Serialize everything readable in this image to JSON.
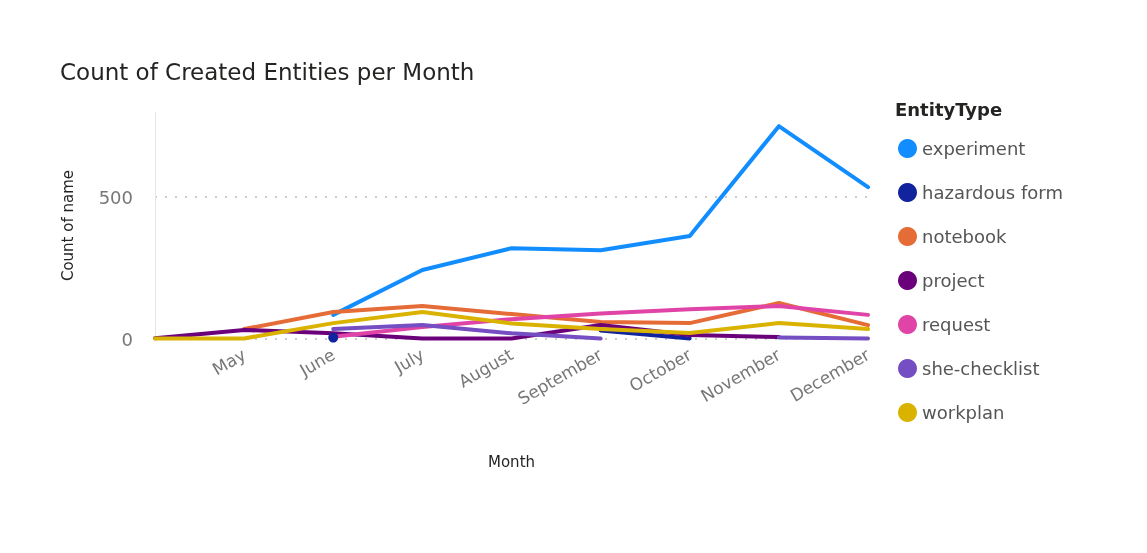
{
  "chart_data": {
    "type": "line",
    "title": "Count of Created Entities per Month",
    "xlabel": "Month",
    "ylabel": "Count of name",
    "legend_title": "EntityType",
    "categories": [
      null,
      "May",
      "June",
      "July",
      "August",
      "September",
      "October",
      "November",
      "December"
    ],
    "series": [
      {
        "name": "experiment",
        "color": "#118dff",
        "values": [
          null,
          null,
          85,
          243,
          320,
          313,
          363,
          750,
          535
        ]
      },
      {
        "name": "hazardous form",
        "color": "#12239e",
        "values": [
          null,
          null,
          5,
          null,
          null,
          30,
          2,
          null,
          null
        ]
      },
      {
        "name": "notebook",
        "color": "#e66c37",
        "values": [
          null,
          35,
          95,
          116,
          88,
          60,
          56,
          127,
          49
        ]
      },
      {
        "name": "project",
        "color": "#6b007b",
        "values": [
          3,
          32,
          20,
          2,
          2,
          49,
          14,
          7,
          null
        ]
      },
      {
        "name": "request",
        "color": "#e044a7",
        "values": [
          null,
          null,
          8,
          42,
          70,
          90,
          105,
          116,
          85
        ]
      },
      {
        "name": "she-checklist",
        "color": "#744ec2",
        "values": [
          null,
          null,
          35,
          49,
          20,
          2,
          null,
          5,
          2
        ]
      },
      {
        "name": "workplan",
        "color": "#d9b300",
        "values": [
          2,
          2,
          56,
          95,
          55,
          35,
          21,
          56,
          35
        ]
      }
    ],
    "ylim": [
      0,
      800
    ],
    "yticks": [
      0,
      500
    ],
    "grid": "y",
    "legend": "right",
    "marker": "none",
    "line_style": "solid"
  }
}
